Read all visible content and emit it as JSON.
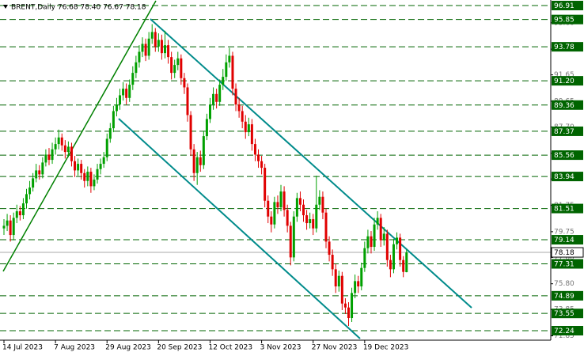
{
  "chart_data": {
    "type": "candlestick",
    "legend_text": "BRENT,Daily  76.68 78.40 76.67 78.18",
    "categories": [
      "14 Jul 2023",
      null,
      null,
      null,
      null,
      null,
      null,
      null,
      null,
      null,
      null,
      null,
      null,
      null,
      null,
      null,
      "7 Aug 2023",
      null,
      null,
      null,
      null,
      null,
      null,
      null,
      null,
      null,
      null,
      null,
      null,
      null,
      null,
      null,
      "29 Aug 2023",
      null,
      null,
      null,
      null,
      null,
      null,
      null,
      null,
      null,
      null,
      null,
      null,
      null,
      null,
      null,
      "20 Sep 2023",
      null,
      null,
      null,
      null,
      null,
      null,
      null,
      null,
      null,
      null,
      null,
      null,
      null,
      null,
      null,
      "12 Oct 2023",
      null,
      null,
      null,
      null,
      null,
      null,
      null,
      null,
      null,
      null,
      null,
      null,
      null,
      null,
      null,
      "3 Nov 2023",
      null,
      null,
      null,
      null,
      null,
      null,
      null,
      null,
      null,
      null,
      null,
      null,
      null,
      null,
      null,
      "27 Nov 2023",
      null,
      null,
      null,
      null,
      null,
      null,
      null,
      null,
      null,
      null,
      null,
      null,
      null,
      null,
      null,
      "19 Dec 2023",
      null,
      null,
      null,
      null,
      null,
      null,
      null,
      null,
      null,
      null,
      null,
      null,
      null
    ],
    "open": [
      80.0,
      80.2,
      80.6,
      79.5,
      80.8,
      81.3,
      81.0,
      81.9,
      82.6,
      83.1,
      83.8,
      84.4,
      84.1,
      85.0,
      85.6,
      85.2,
      86.0,
      86.4,
      86.9,
      86.3,
      85.8,
      86.2,
      85.1,
      84.4,
      84.9,
      84.2,
      83.6,
      84.3,
      83.2,
      83.7,
      84.5,
      84.9,
      85.4,
      86.8,
      87.6,
      88.9,
      89.4,
      90.1,
      90.6,
      89.9,
      90.9,
      91.8,
      92.6,
      93.4,
      94.0,
      93.1,
      94.4,
      94.9,
      93.8,
      94.3,
      93.3,
      93.9,
      93.0,
      91.8,
      92.4,
      92.9,
      91.4,
      90.7,
      88.6,
      86.0,
      84.2,
      85.4,
      84.8,
      87.0,
      88.3,
      89.4,
      90.2,
      89.6,
      90.9,
      91.5,
      92.6,
      93.1,
      90.6,
      89.4,
      88.9,
      88.1,
      87.3,
      87.9,
      86.4,
      85.6,
      85.1,
      84.6,
      82.1,
      80.9,
      80.3,
      82.0,
      81.6,
      82.8,
      81.4,
      80.2,
      77.8,
      80.9,
      82.3,
      81.8,
      81.0,
      80.4,
      80.7,
      80.0,
      81.8,
      82.4,
      81.2,
      79.0,
      78.0,
      76.9,
      75.6,
      76.4,
      74.3,
      74.0,
      73.2,
      75.1,
      76.0,
      75.6,
      77.0,
      78.5,
      79.4,
      78.6,
      80.3,
      80.8,
      79.1,
      79.6,
      77.6,
      76.9,
      78.8,
      79.3,
      77.6,
      76.68
    ],
    "high": [
      80.7,
      81.1,
      81.0,
      81.2,
      81.8,
      81.7,
      82.3,
      83.0,
      83.6,
      84.2,
      84.9,
      84.8,
      85.4,
      86.0,
      86.1,
      86.5,
      86.9,
      87.5,
      87.2,
      86.7,
      86.6,
      86.5,
      85.5,
      85.3,
      85.2,
      84.5,
      84.7,
      84.6,
      84.1,
      84.9,
      85.3,
      85.8,
      87.2,
      88.0,
      89.3,
      89.9,
      90.6,
      91.1,
      91.0,
      91.3,
      92.3,
      93.1,
      93.9,
      94.5,
      94.4,
      94.9,
      95.5,
      95.2,
      94.8,
      94.7,
      95.0,
      94.3,
      93.4,
      92.8,
      93.4,
      93.2,
      91.8,
      91.0,
      88.9,
      86.4,
      85.8,
      85.9,
      87.4,
      88.7,
      89.9,
      90.7,
      90.6,
      91.3,
      92.1,
      93.2,
      93.7,
      93.4,
      91.0,
      89.9,
      89.3,
      88.6,
      88.4,
      88.3,
      86.8,
      86.0,
      85.5,
      84.9,
      82.5,
      81.3,
      82.4,
      82.5,
      83.3,
      83.2,
      81.8,
      80.5,
      81.3,
      82.7,
      82.8,
      82.2,
      81.4,
      81.2,
      81.1,
      84.0,
      82.9,
      82.8,
      81.5,
      79.4,
      78.4,
      77.3,
      76.8,
      76.7,
      74.7,
      74.4,
      75.5,
      76.5,
      76.4,
      77.4,
      79.0,
      79.9,
      79.8,
      80.8,
      81.3,
      81.1,
      80.1,
      79.9,
      78.0,
      79.2,
      79.7,
      79.6,
      77.9,
      78.4
    ],
    "low": [
      79.5,
      79.8,
      79.0,
      79.1,
      80.4,
      80.6,
      80.7,
      81.5,
      82.2,
      82.8,
      83.5,
      83.7,
      83.8,
      84.7,
      84.8,
      84.9,
      85.6,
      86.0,
      85.9,
      85.3,
      85.4,
      84.7,
      83.9,
      84.0,
      83.7,
      83.1,
      83.2,
      82.7,
      82.9,
      83.4,
      84.1,
      84.6,
      85.1,
      86.5,
      87.3,
      88.5,
      89.0,
      89.7,
      89.4,
      89.6,
      90.5,
      91.4,
      92.2,
      93.0,
      92.7,
      92.8,
      94.0,
      93.4,
      93.4,
      92.8,
      92.9,
      92.5,
      91.3,
      91.4,
      92.0,
      90.9,
      90.2,
      88.1,
      85.5,
      83.6,
      83.3,
      84.3,
      84.5,
      86.7,
      88.0,
      89.0,
      89.1,
      89.3,
      90.5,
      91.2,
      92.2,
      90.1,
      88.9,
      88.4,
      87.6,
      86.8,
      87.0,
      85.9,
      85.1,
      84.6,
      84.1,
      81.6,
      80.4,
      79.7,
      80.0,
      81.1,
      81.3,
      80.9,
      79.7,
      77.2,
      77.5,
      80.5,
      81.3,
      80.5,
      79.9,
      80.0,
      79.5,
      79.7,
      81.4,
      80.7,
      78.5,
      77.5,
      76.4,
      75.1,
      75.2,
      73.8,
      73.5,
      72.6,
      72.9,
      74.7,
      75.1,
      75.3,
      76.7,
      78.1,
      78.1,
      78.3,
      79.9,
      78.6,
      78.7,
      77.1,
      76.3,
      76.6,
      78.4,
      77.1,
      76.3,
      76.67
    ],
    "close": [
      80.2,
      80.6,
      79.5,
      80.8,
      81.3,
      81.0,
      81.9,
      82.6,
      83.1,
      83.8,
      84.4,
      84.1,
      85.0,
      85.6,
      85.2,
      86.0,
      86.4,
      86.9,
      86.3,
      85.8,
      86.2,
      85.1,
      84.4,
      84.9,
      84.2,
      83.6,
      84.3,
      83.2,
      83.7,
      84.5,
      84.9,
      85.4,
      86.8,
      87.6,
      88.9,
      89.4,
      90.1,
      90.6,
      89.9,
      90.9,
      91.8,
      92.6,
      93.4,
      94.0,
      93.1,
      94.4,
      94.9,
      93.8,
      94.3,
      93.3,
      93.9,
      93.0,
      91.8,
      92.4,
      92.9,
      91.4,
      90.7,
      88.6,
      86.0,
      84.2,
      85.4,
      84.8,
      87.0,
      88.3,
      89.4,
      90.2,
      89.6,
      90.9,
      91.5,
      92.6,
      93.1,
      90.6,
      89.4,
      88.9,
      88.1,
      87.3,
      87.9,
      86.4,
      85.6,
      85.1,
      84.6,
      82.1,
      80.9,
      80.3,
      82.0,
      81.6,
      82.8,
      81.4,
      80.2,
      77.8,
      80.9,
      82.3,
      81.8,
      81.0,
      80.4,
      80.7,
      80.0,
      81.8,
      82.4,
      81.2,
      79.0,
      78.0,
      76.9,
      75.6,
      76.4,
      74.3,
      74.0,
      73.2,
      75.1,
      76.0,
      75.6,
      77.0,
      78.5,
      79.4,
      78.6,
      80.3,
      80.8,
      79.1,
      79.6,
      77.6,
      76.9,
      78.8,
      79.3,
      77.6,
      76.7,
      78.18
    ],
    "up_color": "#00a000",
    "down_color": "#e00000",
    "ylim": [
      71.52,
      97.33
    ],
    "yticks": [
      71.85,
      73.85,
      {
        "value": 75.8,
        "label": "75.80"
      },
      {
        "value": 77.8,
        "label": "77.80"
      },
      79.75,
      81.75,
      83.75,
      {
        "value": 85.7,
        "label": "85.70"
      },
      {
        "value": 87.7,
        "label": "87.70"
      },
      89.65,
      91.65,
      {
        "value": 93.6,
        "label": "93.60"
      },
      {
        "value": 95.6,
        "label": "95.60"
      }
    ],
    "levels": [
      96.91,
      95.85,
      93.78,
      {
        "value": 91.2,
        "label": "91.20"
      },
      89.36,
      87.37,
      85.56,
      83.94,
      81.51,
      79.14,
      77.31,
      74.89,
      73.55,
      72.24
    ],
    "level_color": "#006400",
    "last_price": 78.18
  }
}
